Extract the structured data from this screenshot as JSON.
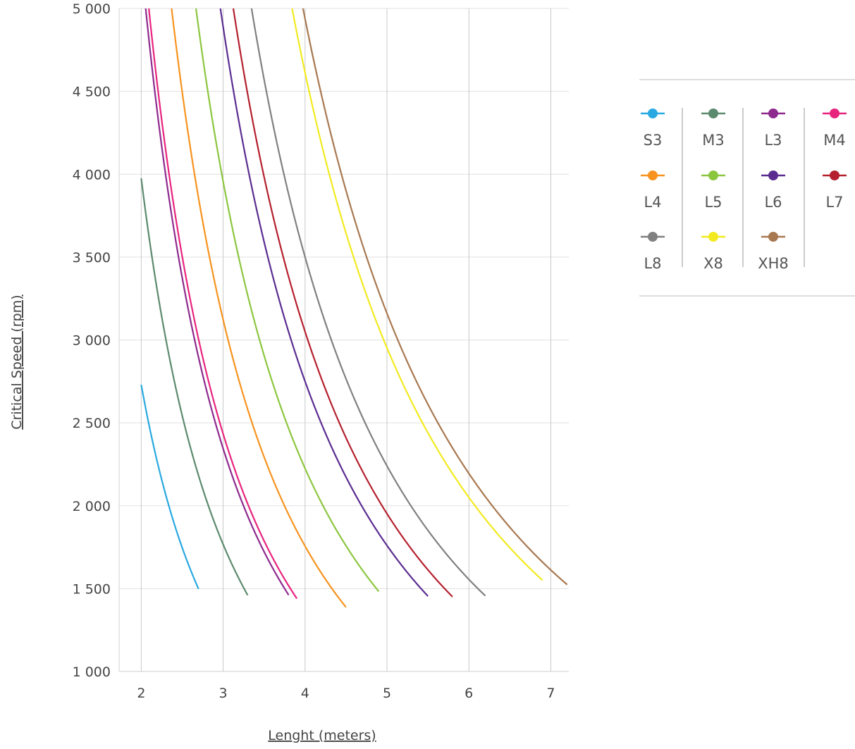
{
  "chart_data": {
    "type": "line",
    "title": "",
    "xlabel": "Lenght (meters)",
    "ylabel": "Critical Speed (rpm)",
    "xlim": [
      1.73,
      7.22
    ],
    "ylim": [
      1000,
      5000
    ],
    "x_ticks": [
      2,
      3,
      4,
      5,
      6,
      7
    ],
    "x_tick_labels": [
      "2",
      "3",
      "4",
      "5",
      "6",
      "7"
    ],
    "y_ticks": [
      1000,
      1500,
      2000,
      2500,
      3000,
      3500,
      4000,
      4500,
      5000
    ],
    "y_tick_labels": [
      "1 000",
      "1 500",
      "2 000",
      "2 500",
      "3 000",
      "3 500",
      "4 000",
      "4 500",
      "5 000"
    ],
    "grid": "horizontal and vertical",
    "legend_position": "right",
    "series": [
      {
        "name": "S3",
        "color": "#29a9e1",
        "k": 10920,
        "x_end": 2.7
      },
      {
        "name": "M3",
        "color": "#5c8a6e",
        "k": 15900,
        "x_end": 3.3
      },
      {
        "name": "L3",
        "color": "#8e2a8e",
        "k": 21100,
        "x_end": 3.8
      },
      {
        "name": "M4",
        "color": "#e8237e",
        "k": 21900,
        "x_end": 3.9
      },
      {
        "name": "L4",
        "color": "#f7931e",
        "k": 28100,
        "x_end": 4.5
      },
      {
        "name": "L5",
        "color": "#8cc63f",
        "k": 35600,
        "x_end": 4.9
      },
      {
        "name": "L6",
        "color": "#5b2d91",
        "k": 44000,
        "x_end": 5.5
      },
      {
        "name": "L7",
        "color": "#b5202e",
        "k": 48800,
        "x_end": 5.8
      },
      {
        "name": "L8",
        "color": "#808080",
        "k": 56000,
        "x_end": 6.2
      },
      {
        "name": "X8",
        "color": "#f2ea1f",
        "k": 73800,
        "x_end": 6.9
      },
      {
        "name": "XH8",
        "color": "#a87850",
        "k": 79000,
        "x_end": 7.2
      }
    ]
  }
}
